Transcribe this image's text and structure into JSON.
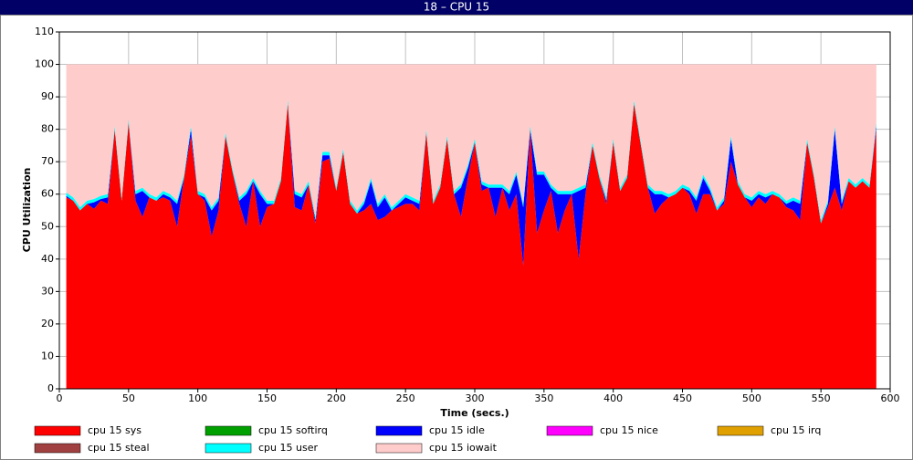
{
  "chart_data": {
    "type": "stacked_area",
    "title": "18 – CPU 15",
    "xlabel": "Time (secs.)",
    "ylabel": "CPU Utilization",
    "xlim": [
      0,
      600
    ],
    "ylim": [
      0,
      110
    ],
    "xticks": [
      0,
      50,
      100,
      150,
      200,
      250,
      300,
      350,
      400,
      450,
      500,
      550,
      600
    ],
    "yticks": [
      0,
      10,
      20,
      30,
      40,
      50,
      60,
      70,
      80,
      90,
      100,
      110
    ],
    "grid": true,
    "legend": "bottom",
    "x": [
      5,
      10,
      15,
      20,
      25,
      30,
      35,
      40,
      45,
      50,
      55,
      60,
      65,
      70,
      75,
      80,
      85,
      90,
      95,
      100,
      105,
      110,
      115,
      120,
      125,
      130,
      135,
      140,
      145,
      150,
      155,
      160,
      165,
      170,
      175,
      180,
      185,
      190,
      195,
      200,
      205,
      210,
      215,
      220,
      225,
      230,
      235,
      240,
      245,
      250,
      255,
      260,
      265,
      270,
      275,
      280,
      285,
      290,
      295,
      300,
      305,
      310,
      315,
      320,
      325,
      330,
      335,
      340,
      345,
      350,
      355,
      360,
      365,
      370,
      375,
      380,
      385,
      390,
      395,
      400,
      405,
      410,
      415,
      420,
      425,
      430,
      435,
      440,
      445,
      450,
      455,
      460,
      465,
      470,
      475,
      480,
      485,
      490,
      495,
      500,
      505,
      510,
      515,
      520,
      525,
      530,
      535,
      540,
      545,
      550,
      555,
      560,
      565,
      570,
      575,
      580,
      585,
      590
    ],
    "series": [
      {
        "name": "cpu 15 sys",
        "color": "#ff0000",
        "values": [
          59,
          58,
          55,
          57,
          55.5,
          58,
          57,
          80,
          58,
          82,
          58,
          53,
          59,
          58,
          59,
          58,
          50,
          65,
          78,
          60,
          58,
          47,
          55,
          78,
          67,
          57,
          50,
          64,
          50,
          56,
          57,
          64,
          88,
          56,
          55,
          63,
          51,
          70,
          71,
          61,
          73,
          57,
          54,
          55,
          57,
          52,
          53,
          55,
          56,
          57,
          57,
          55,
          79,
          57,
          62,
          77,
          60,
          53,
          65,
          76,
          61,
          62,
          53,
          62,
          55,
          60,
          38,
          80,
          48,
          55,
          61,
          48,
          55,
          60,
          40,
          60,
          75,
          65,
          57,
          76,
          61,
          65,
          88,
          75,
          62,
          54,
          57,
          59,
          60,
          62,
          60,
          54,
          60,
          60,
          55,
          57,
          70,
          63,
          59,
          56,
          59,
          57,
          60,
          59,
          56,
          55,
          52,
          76,
          65,
          51,
          56,
          62,
          55,
          64,
          62,
          64,
          62,
          80
        ]
      },
      {
        "name": "cpu 15 softirq",
        "color": "#00a000",
        "values": [
          0,
          0,
          0,
          0,
          0,
          0,
          0,
          0,
          0,
          0,
          0,
          0,
          0,
          0,
          0,
          0,
          0,
          0,
          0,
          0,
          0,
          0,
          0,
          0,
          0,
          0,
          0,
          0,
          0,
          0,
          0,
          0,
          0,
          0,
          0,
          0,
          0,
          0,
          0,
          0,
          0,
          0,
          0,
          0,
          0,
          0,
          0,
          0,
          0,
          0,
          0,
          0,
          0,
          0,
          0,
          0,
          0,
          0,
          0,
          0,
          0,
          0,
          0,
          0,
          0,
          0,
          0,
          0,
          0,
          0,
          0,
          0,
          0,
          0,
          0,
          0,
          0,
          0,
          0,
          0,
          0,
          0,
          0,
          0,
          0,
          0,
          0,
          0,
          0,
          0,
          0,
          0,
          0,
          0,
          0,
          0,
          0,
          0,
          0,
          0,
          0,
          0,
          0,
          0,
          0,
          0,
          0,
          0,
          0,
          0,
          0,
          0,
          0,
          0,
          0,
          0,
          0,
          0
        ]
      },
      {
        "name": "cpu 15 idle",
        "color": "#0000ff",
        "values": [
          0.5,
          0,
          0,
          0,
          2,
          0.5,
          2,
          0,
          0,
          0,
          2,
          8,
          0,
          0,
          1,
          1,
          7,
          0,
          2,
          0,
          1,
          8,
          3,
          0,
          0,
          1,
          10,
          0,
          10,
          1,
          0,
          0,
          0,
          4,
          4,
          0,
          1,
          2,
          1,
          0,
          0,
          0,
          0,
          2,
          7,
          4,
          6,
          0,
          1,
          2,
          1,
          2,
          0,
          0,
          0,
          0,
          0,
          9,
          3,
          0,
          2,
          0,
          9,
          0,
          5,
          6,
          18,
          0,
          18,
          11,
          1,
          12,
          5,
          0,
          21,
          2,
          0,
          0,
          1,
          0,
          0,
          0,
          0,
          0,
          0,
          6,
          3,
          0,
          0,
          0,
          1,
          4,
          5,
          1,
          0,
          1,
          7,
          0,
          0,
          2,
          1,
          2,
          0,
          0,
          1,
          3,
          5,
          0,
          0,
          0,
          1,
          18,
          2,
          0,
          0,
          0,
          0,
          1
        ]
      },
      {
        "name": "cpu 15 nice",
        "color": "#ff00ff",
        "values": [
          0,
          0,
          0,
          0,
          0,
          0,
          0,
          0,
          0,
          0,
          0,
          0,
          0,
          0,
          0,
          0,
          0,
          0,
          0,
          0,
          0,
          0,
          0,
          0,
          0,
          0,
          0,
          0,
          0,
          0,
          0,
          0,
          0,
          0,
          0,
          0,
          0,
          0,
          0,
          0,
          0,
          0,
          0,
          0,
          0,
          0,
          0,
          0,
          0,
          0,
          0,
          0,
          0,
          0,
          0,
          0,
          0,
          0,
          0,
          0,
          0,
          0,
          0,
          0,
          0,
          0,
          0,
          0,
          0,
          0,
          0,
          0,
          0,
          0,
          0,
          0,
          0,
          0,
          0,
          0,
          0,
          0,
          0,
          0,
          0,
          0,
          0,
          0,
          0,
          0,
          0,
          0,
          0,
          0,
          0,
          0,
          0,
          0,
          0,
          0,
          0,
          0,
          0,
          0,
          0,
          0,
          0,
          0,
          0,
          0,
          0,
          0,
          0,
          0,
          0,
          0,
          0,
          0
        ]
      },
      {
        "name": "cpu 15 irq",
        "color": "#e0a000",
        "values": [
          0,
          0,
          0,
          0,
          0,
          0,
          0,
          0,
          0,
          0,
          0,
          0,
          0,
          0,
          0,
          0,
          0,
          0,
          0,
          0,
          0,
          0,
          0,
          0,
          0,
          0,
          0,
          0,
          0,
          0,
          0,
          0,
          0,
          0,
          0,
          0,
          0,
          0,
          0,
          0,
          0,
          0,
          0,
          0,
          0,
          0,
          0,
          0,
          0,
          0,
          0,
          0,
          0,
          0,
          0,
          0,
          0,
          0,
          0,
          0,
          0,
          0,
          0,
          0,
          0,
          0,
          0,
          0,
          0,
          0,
          0,
          0,
          0,
          0,
          0,
          0,
          0,
          0,
          0,
          0,
          0,
          0,
          0,
          0,
          0,
          0,
          0,
          0,
          0,
          0,
          0,
          0,
          0,
          0,
          0,
          0,
          0,
          0,
          0,
          0,
          0,
          0,
          0,
          0,
          0,
          0,
          0,
          0,
          0,
          0,
          0,
          0,
          0,
          0,
          0,
          0,
          0,
          0
        ]
      },
      {
        "name": "cpu 15 steal",
        "color": "#a04040",
        "values": [
          0,
          0,
          0,
          0,
          0,
          0,
          0,
          0,
          0,
          0,
          0,
          0,
          0,
          0,
          0,
          0,
          0,
          0,
          0,
          0,
          0,
          0,
          0,
          0,
          0,
          0,
          0,
          0,
          0,
          0,
          0,
          0,
          0,
          0,
          0,
          0,
          0,
          0,
          0,
          0,
          0,
          0,
          0,
          0,
          0,
          0,
          0,
          0,
          0,
          0,
          0,
          0,
          0,
          0,
          0,
          0,
          0,
          0,
          0,
          0,
          0,
          0,
          0,
          0,
          0,
          0,
          0,
          0,
          0,
          0,
          0,
          0,
          0,
          0,
          0,
          0,
          0,
          0,
          0,
          0,
          0,
          0,
          0,
          0,
          0,
          0,
          0,
          0,
          0,
          0,
          0,
          0,
          0,
          0,
          0,
          0,
          0,
          0,
          0,
          0,
          0,
          0,
          0,
          0,
          0,
          0,
          0,
          0,
          0,
          0,
          0,
          0,
          0,
          0,
          0,
          0,
          0,
          0
        ]
      },
      {
        "name": "cpu 15 user",
        "color": "#00ffff",
        "values": [
          1,
          1,
          1,
          1,
          1,
          1,
          1,
          1,
          1,
          1,
          1,
          1,
          1,
          1,
          1,
          1,
          1,
          1,
          1,
          1,
          1,
          1,
          1,
          1,
          1,
          1,
          1,
          1,
          1,
          1,
          1,
          1,
          1,
          1,
          1,
          1,
          1,
          1,
          1,
          1,
          1,
          1,
          1,
          1,
          1,
          1,
          1,
          1,
          1,
          1,
          1,
          1,
          1,
          1,
          1,
          1,
          1,
          1,
          1,
          1,
          1,
          1,
          1,
          1,
          1,
          1,
          1,
          1,
          1,
          1,
          1,
          1,
          1,
          1,
          1,
          1,
          1,
          1,
          1,
          1,
          1,
          1,
          1,
          1,
          1,
          1,
          1,
          1,
          1,
          1,
          1,
          1,
          1,
          1,
          1,
          1,
          1,
          1,
          1,
          1,
          1,
          1,
          1,
          1,
          1,
          1,
          1,
          1,
          1,
          1,
          1,
          1,
          1,
          1,
          1,
          1,
          1,
          1
        ]
      },
      {
        "name": "cpu 15 iowait",
        "color": "#ffcccc",
        "values": [
          39.5,
          41,
          44,
          42,
          41.5,
          40.5,
          40,
          19,
          41,
          17,
          39,
          38,
          40,
          41,
          39,
          40,
          42,
          34,
          19,
          39,
          40,
          44,
          41,
          21,
          32,
          41,
          39,
          35,
          39,
          42,
          42,
          35,
          11,
          39,
          40,
          36,
          47,
          27,
          27,
          38,
          26,
          42,
          45,
          42,
          35,
          43,
          40,
          44,
          42,
          40,
          41,
          42,
          20,
          42,
          37,
          22,
          39,
          37,
          31,
          23,
          36,
          37,
          37,
          37,
          39,
          33,
          43,
          19,
          33,
          33,
          37,
          39,
          39,
          39,
          38,
          37,
          24,
          34,
          41,
          23,
          38,
          34,
          11,
          24,
          37,
          39,
          39,
          40,
          39,
          37,
          38,
          41,
          34,
          38,
          44,
          41,
          22,
          36,
          40,
          41,
          39,
          40,
          39,
          40,
          42,
          41,
          42,
          23,
          34,
          48,
          42,
          19,
          42,
          35,
          37,
          35,
          37,
          18
        ]
      }
    ]
  }
}
